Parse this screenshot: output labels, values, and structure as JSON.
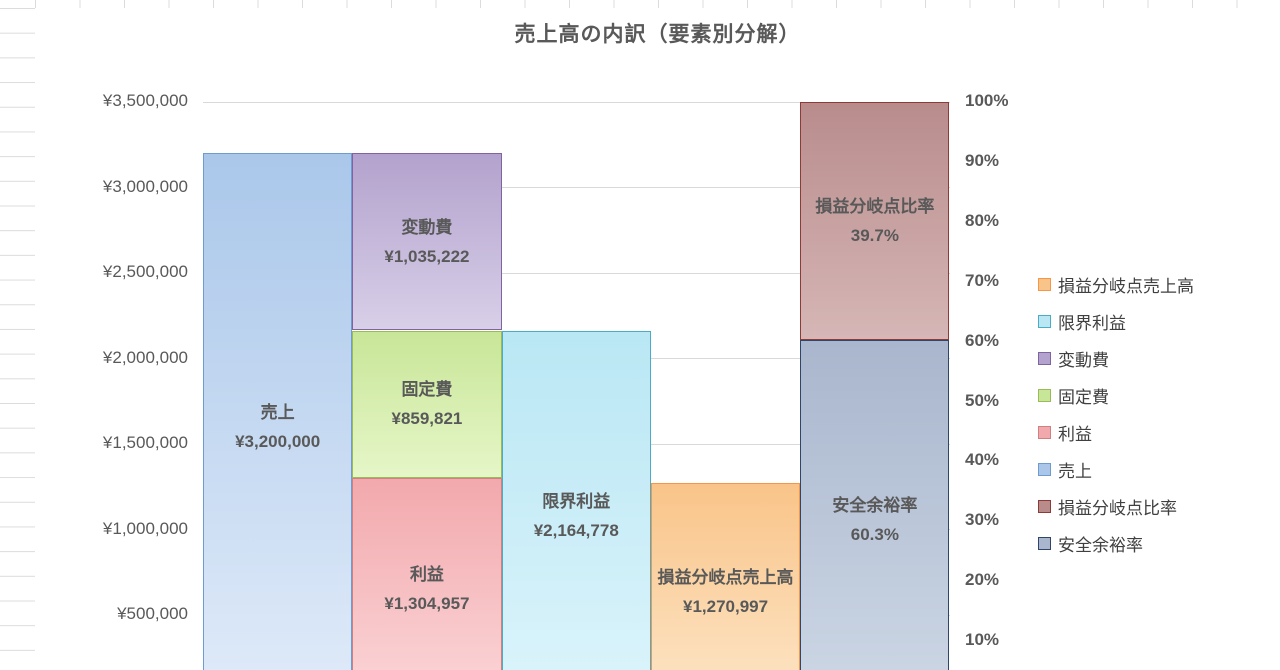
{
  "chart_data": {
    "type": "bar",
    "title": "売上高の内訳（要素別分解）",
    "grid": "horizontal",
    "legend_position": "right",
    "left_axis": {
      "unit": "JPY",
      "min": 0,
      "max": 3500000,
      "step": 500000,
      "ticks": [
        {
          "label": "¥3,500,000",
          "value": 3500000
        },
        {
          "label": "¥3,000,000",
          "value": 3000000
        },
        {
          "label": "¥2,500,000",
          "value": 2500000
        },
        {
          "label": "¥2,000,000",
          "value": 2000000
        },
        {
          "label": "¥1,500,000",
          "value": 1500000
        },
        {
          "label": "¥1,000,000",
          "value": 1000000
        },
        {
          "label": "¥500,000",
          "value": 500000
        }
      ]
    },
    "right_axis": {
      "unit": "percent",
      "min": 0,
      "max": 1.0,
      "step": 0.1,
      "ticks": [
        {
          "label": "100%",
          "value": 1.0
        },
        {
          "label": "90%",
          "value": 0.9
        },
        {
          "label": "80%",
          "value": 0.8
        },
        {
          "label": "70%",
          "value": 0.7
        },
        {
          "label": "60%",
          "value": 0.6
        },
        {
          "label": "50%",
          "value": 0.5
        },
        {
          "label": "40%",
          "value": 0.4
        },
        {
          "label": "30%",
          "value": 0.3
        },
        {
          "label": "20%",
          "value": 0.2
        },
        {
          "label": "10%",
          "value": 0.1
        }
      ]
    },
    "bars": [
      {
        "axis": "left",
        "segments": [
          {
            "key": "sales",
            "label": "売上",
            "value": 3200000,
            "value_label": "¥3,200,000"
          }
        ]
      },
      {
        "axis": "left",
        "segments": [
          {
            "key": "profit",
            "label": "利益",
            "value": 1304957,
            "value_label": "¥1,304,957"
          },
          {
            "key": "fixed-cost",
            "label": "固定費",
            "value": 859821,
            "value_label": "¥859,821"
          },
          {
            "key": "variable-cost",
            "label": "変動費",
            "value": 1035222,
            "value_label": "¥1,035,222"
          }
        ]
      },
      {
        "axis": "left",
        "segments": [
          {
            "key": "marginal-profit",
            "label": "限界利益",
            "value": 2164778,
            "value_label": "¥2,164,778"
          }
        ]
      },
      {
        "axis": "left",
        "segments": [
          {
            "key": "breakeven-sales",
            "label": "損益分岐点売上高",
            "value": 1270997,
            "value_label": "¥1,270,997"
          }
        ]
      },
      {
        "axis": "right",
        "segments": [
          {
            "key": "safety-margin",
            "label": "安全余裕率",
            "value": 0.603,
            "value_label": "60.3%"
          },
          {
            "key": "breakeven-ratio",
            "label": "損益分岐点比率",
            "value": 0.397,
            "value_label": "39.7%"
          }
        ]
      }
    ],
    "legend": [
      {
        "key": "breakeven-sales",
        "label": "損益分岐点売上高"
      },
      {
        "key": "marginal-profit",
        "label": "限界利益"
      },
      {
        "key": "variable-cost",
        "label": "変動費"
      },
      {
        "key": "fixed-cost",
        "label": "固定費"
      },
      {
        "key": "profit",
        "label": "利益"
      },
      {
        "key": "sales",
        "label": "売上"
      },
      {
        "key": "breakeven-ratio",
        "label": "損益分岐点比率"
      },
      {
        "key": "safety-margin",
        "label": "安全余裕率"
      }
    ],
    "colors": {
      "sales": {
        "border": "#6f9bd1",
        "fill_top": "#aac7ea",
        "fill_bottom": "#e0ebf9"
      },
      "variable-cost": {
        "border": "#8064a2",
        "fill_top": "#b3a2cd",
        "fill_bottom": "#d8cfe8"
      },
      "fixed-cost": {
        "border": "#9bbb59",
        "fill_top": "#c8e698",
        "fill_bottom": "#e6f6c8"
      },
      "profit": {
        "border": "#d0807e",
        "fill_top": "#f2a9ad",
        "fill_bottom": "#fbd6d8"
      },
      "marginal-profit": {
        "border": "#4bacc6",
        "fill_top": "#b9e7f4",
        "fill_bottom": "#dcf4fb"
      },
      "breakeven-sales": {
        "border": "#f79646",
        "fill_top": "#f9c489",
        "fill_bottom": "#fde5c6"
      },
      "breakeven-ratio": {
        "border": "#8e3b38",
        "fill_top": "#b98c8c",
        "fill_bottom": "#d6b6b6"
      },
      "safety-margin": {
        "border": "#2f4569",
        "fill_top": "#a9b6cd",
        "fill_bottom": "#cdd7e5"
      }
    },
    "ui_colors": {
      "gridline": "#d9d9d9",
      "axis_text": "#595959",
      "title_text": "#595959",
      "legend_text": "#404040",
      "sheet_grid": "#dcdcdc"
    }
  }
}
